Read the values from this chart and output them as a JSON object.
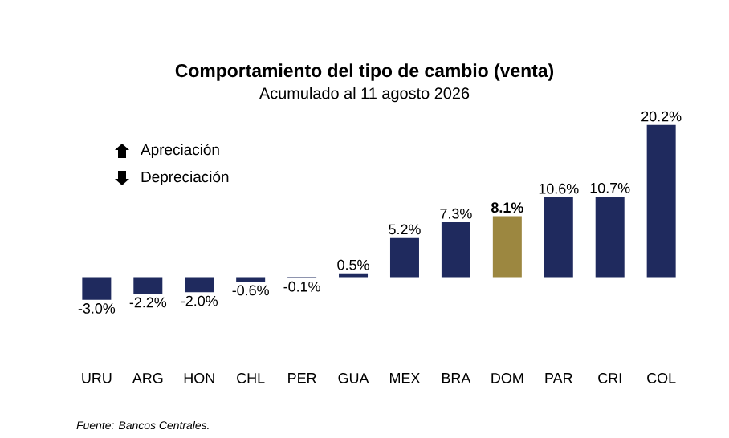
{
  "chart_data": {
    "type": "bar",
    "title": "Comportamiento del tipo de cambio (venta)",
    "subtitle": "Acumulado al 11 agosto 2026",
    "categories": [
      "URU",
      "ARG",
      "HON",
      "CHL",
      "PER",
      "GUA",
      "MEX",
      "BRA",
      "DOM",
      "PAR",
      "CRI",
      "COL"
    ],
    "values": [
      -3.0,
      -2.2,
      -2.0,
      -0.6,
      -0.1,
      0.5,
      5.2,
      7.3,
      8.1,
      10.6,
      10.7,
      20.2
    ],
    "colors": [
      "#1f2a5e",
      "#1f2a5e",
      "#1f2a5e",
      "#1f2a5e",
      "#1f2a5e",
      "#1f2a5e",
      "#1f2a5e",
      "#1f2a5e",
      "#9c8740",
      "#1f2a5e",
      "#1f2a5e",
      "#1f2a5e"
    ],
    "value_labels": [
      "-3.0%",
      "-2.2%",
      "-2.0%",
      "-0.6%",
      "-0.1%",
      "0.5%",
      "5.2%",
      "7.3%",
      "**8.1%**",
      "10.6%",
      "10.7%",
      "20.2%"
    ],
    "annotations": [
      "Apreciación",
      "Depreciación",
      "Fuente: Bancos Centrales."
    ]
  }
}
